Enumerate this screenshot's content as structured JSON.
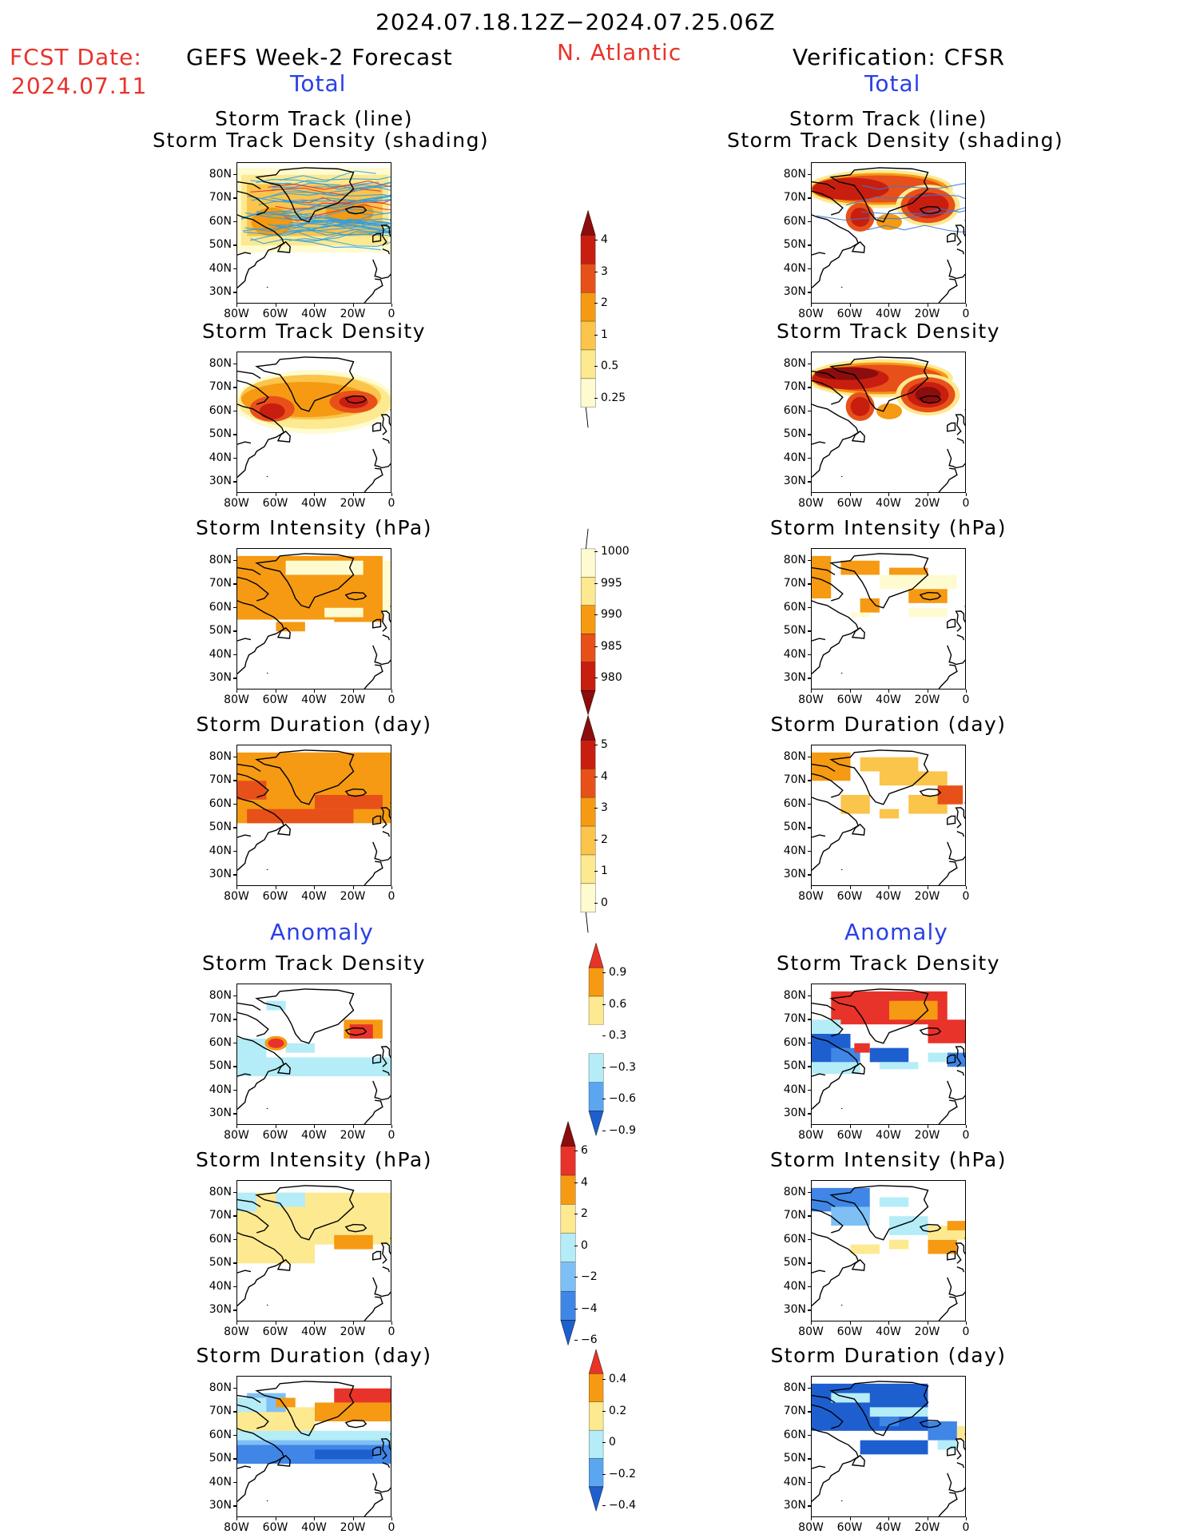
{
  "header": {
    "date_range": "2024.07.18.12Z−2024.07.25.06Z",
    "fcst_label": "FCST Date:",
    "fcst_date": "2024.07.11",
    "left_title": "GEFS Week-2 Forecast",
    "region": "N. Atlantic",
    "right_title": "Verification: CFSR",
    "total_label": "Total",
    "anomaly_label": "Anomaly"
  },
  "axes": {
    "lat_ticks": [
      "80N",
      "70N",
      "60N",
      "50N",
      "40N",
      "30N"
    ],
    "lon_ticks": [
      "80W",
      "60W",
      "40W",
      "20W",
      "0"
    ]
  },
  "panel_titles": {
    "track_line": "Storm Track (line)",
    "track_shading": "Storm Track Density (shading)",
    "density": "Storm Track Density",
    "intensity": "Storm Intensity (hPa)",
    "duration": "Storm Duration (day)"
  },
  "colorbars": {
    "density": {
      "labels": [
        "4",
        "3",
        "2",
        "1",
        "0.5",
        "0.25"
      ],
      "colors": [
        "#8b0d0d",
        "#c81e10",
        "#e8501a",
        "#f59a12",
        "#fbc44a",
        "#fde98f",
        "#fffbd0"
      ]
    },
    "intensity": {
      "labels": [
        "1000",
        "995",
        "990",
        "985",
        "980"
      ],
      "colors": [
        "#fffbd0",
        "#fde98f",
        "#f59a12",
        "#e8501a",
        "#c81e10",
        "#8b0d0d"
      ]
    },
    "duration": {
      "labels": [
        "5",
        "4",
        "3",
        "2",
        "1",
        "0"
      ],
      "colors": [
        "#8b0d0d",
        "#c81e10",
        "#e8501a",
        "#f59a12",
        "#fbc44a",
        "#fde98f",
        "#fffbd0"
      ]
    },
    "anom_density": {
      "labels": [
        "0.9",
        "0.6",
        "0.3",
        "−0.3",
        "−0.6",
        "−0.9"
      ],
      "colors": [
        "#e8332a",
        "#f59a12",
        "#fde98f",
        "#ffffff",
        "#b4ecf7",
        "#5aa6f0",
        "#1e5fd0"
      ]
    },
    "anom_intensity": {
      "labels": [
        "6",
        "4",
        "2",
        "0",
        "−2",
        "−4",
        "−6"
      ],
      "colors": [
        "#8b0d0d",
        "#e8332a",
        "#f59a12",
        "#fde98f",
        "#b4ecf7",
        "#7ec0f5",
        "#3f86e6",
        "#1e5fd0"
      ]
    },
    "anom_duration": {
      "labels": [
        "0.4",
        "0.2",
        "0",
        "−0.2",
        "−0.4"
      ],
      "colors": [
        "#e8332a",
        "#f59a12",
        "#fde98f",
        "#b4ecf7",
        "#5aa6f0",
        "#1e5fd0"
      ]
    }
  },
  "chart_data": [
    {
      "type": "heatmap",
      "panel": "forecast-total-track",
      "title": "Storm Track (line) / Storm Track Density (shading)",
      "xlim": [
        "80W",
        "0"
      ],
      "ylim": [
        "25N",
        "85N"
      ],
      "note_values": "density shading 0.25-2, tracks drawn as lines"
    },
    {
      "type": "heatmap",
      "panel": "verification-total-track",
      "title": "Storm Track (line) / Storm Track Density (shading)",
      "xlim": [
        "80W",
        "0"
      ],
      "ylim": [
        "25N",
        "85N"
      ]
    },
    {
      "type": "heatmap",
      "panel": "forecast-total-density",
      "title": "Storm Track Density",
      "max_value": 3
    },
    {
      "type": "heatmap",
      "panel": "verification-total-density",
      "title": "Storm Track Density",
      "max_value": 4
    },
    {
      "type": "heatmap",
      "panel": "forecast-total-intensity",
      "title": "Storm Intensity (hPa)",
      "range": [
        990,
        1000
      ]
    },
    {
      "type": "heatmap",
      "panel": "verification-total-intensity",
      "title": "Storm Intensity (hPa)",
      "range": [
        990,
        1000
      ]
    },
    {
      "type": "heatmap",
      "panel": "forecast-total-duration",
      "title": "Storm Duration (day)",
      "range": [
        1,
        3
      ]
    },
    {
      "type": "heatmap",
      "panel": "verification-total-duration",
      "title": "Storm Duration (day)",
      "range": [
        0,
        3
      ]
    },
    {
      "type": "heatmap",
      "panel": "forecast-anom-density",
      "title": "Storm Track Density",
      "range": [
        -0.3,
        0.9
      ]
    },
    {
      "type": "heatmap",
      "panel": "verification-anom-density",
      "title": "Storm Track Density",
      "range": [
        -0.9,
        0.9
      ]
    },
    {
      "type": "heatmap",
      "panel": "forecast-anom-intensity",
      "title": "Storm Intensity (hPa)",
      "range": [
        -2,
        2
      ]
    },
    {
      "type": "heatmap",
      "panel": "verification-anom-intensity",
      "title": "Storm Intensity (hPa)",
      "range": [
        -4,
        4
      ]
    },
    {
      "type": "heatmap",
      "panel": "forecast-anom-duration",
      "title": "Storm Duration (day)",
      "range": [
        -0.4,
        0.4
      ]
    },
    {
      "type": "heatmap",
      "panel": "verification-anom-duration",
      "title": "Storm Duration (day)",
      "range": [
        -0.4,
        0.2
      ]
    }
  ]
}
